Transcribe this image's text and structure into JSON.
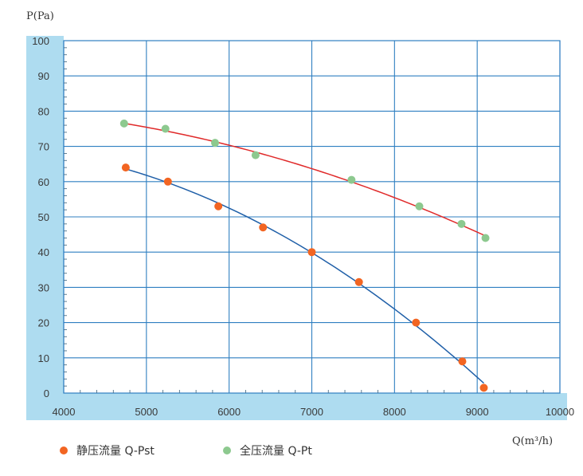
{
  "chart_data": {
    "type": "line",
    "ylabel": "P(Pa)",
    "xlabel": "Q(m³/h)",
    "xlim": [
      4000,
      10000
    ],
    "ylim": [
      0,
      100
    ],
    "x_ticks": [
      4000,
      5000,
      6000,
      7000,
      8000,
      9000,
      10000
    ],
    "y_ticks": [
      0,
      10,
      20,
      30,
      40,
      50,
      60,
      70,
      80,
      90,
      100
    ],
    "grid": true,
    "legend_position": "bottom-left",
    "series": [
      {
        "name": "静压流量  Q-Pst",
        "marker_color": "#f26522",
        "line_color": "#1f5fa8",
        "points": [
          [
            4750,
            64
          ],
          [
            5260,
            60
          ],
          [
            5870,
            53
          ],
          [
            6410,
            47
          ],
          [
            7000,
            40
          ],
          [
            7570,
            31.5
          ],
          [
            8260,
            20
          ],
          [
            8820,
            9
          ],
          [
            9080,
            1.5
          ]
        ]
      },
      {
        "name": "全压流量  Q-Pt",
        "marker_color": "#8dc98f",
        "line_color": "#e02a2a",
        "points": [
          [
            4730,
            76.5
          ],
          [
            5230,
            75
          ],
          [
            5830,
            71
          ],
          [
            6320,
            67.5
          ],
          [
            7480,
            60.5
          ],
          [
            8300,
            53
          ],
          [
            8810,
            48
          ],
          [
            9100,
            44
          ]
        ]
      }
    ],
    "colors": {
      "plot_background": "#aedcf0",
      "grid": "#2f7fc1"
    }
  }
}
